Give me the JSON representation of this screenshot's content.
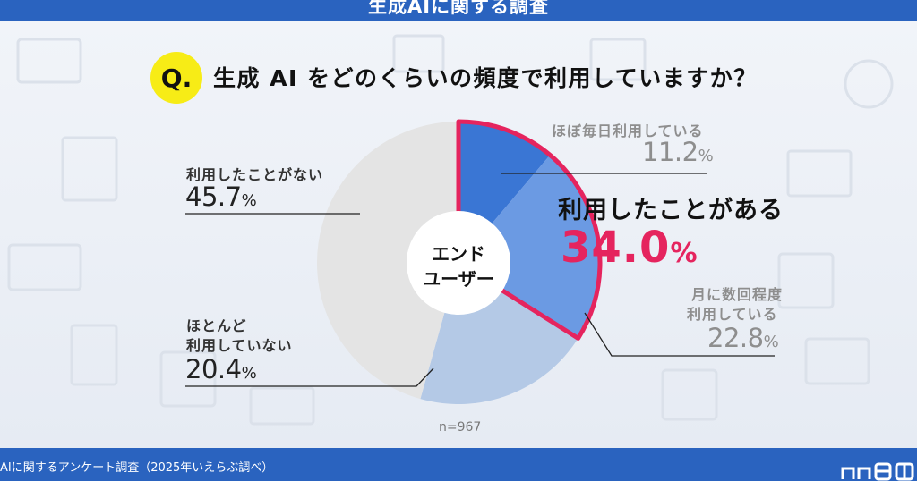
{
  "header": {
    "title": "生成AIに関する調査"
  },
  "question": {
    "badge": "Q.",
    "text": "生成 AI をどのくらいの頻度で利用していますか？"
  },
  "chart_data": {
    "type": "pie",
    "center_label": [
      "エンド",
      "ユーザー"
    ],
    "sample_size": "n=967",
    "slices": [
      {
        "label": "ほぼ毎日利用している",
        "value": 11.2,
        "color": "#3a76d4"
      },
      {
        "label": "月に数回程度利用している",
        "value": 22.8,
        "color": "#6b9ae3"
      },
      {
        "label": "ほとんど利用していない",
        "value": 20.4,
        "color": "#b4c9e6"
      },
      {
        "label": "利用したことがない",
        "value": 45.7,
        "color": "#e4e4e4"
      }
    ],
    "highlight": {
      "label": "利用したことがある",
      "value": 34.0,
      "color": "#e5245e"
    }
  },
  "labels": {
    "daily_name": "ほぼ毎日利用している",
    "daily_value": "11.2",
    "monthly_name_1": "月に数回程度",
    "monthly_name_2": "利用している",
    "monthly_value": "22.8",
    "rarely_name_1": "ほとんど",
    "rarely_name_2": "利用していない",
    "rarely_value": "20.4",
    "never_name": "利用したことがない",
    "never_value": "45.7",
    "pct": "%",
    "highlight_title": "利用したことがある",
    "highlight_value": "34.0"
  },
  "footer": {
    "source": "AIに関するアンケート調査（2025年いえらぶ調べ）",
    "logo": "いえらぶ"
  }
}
